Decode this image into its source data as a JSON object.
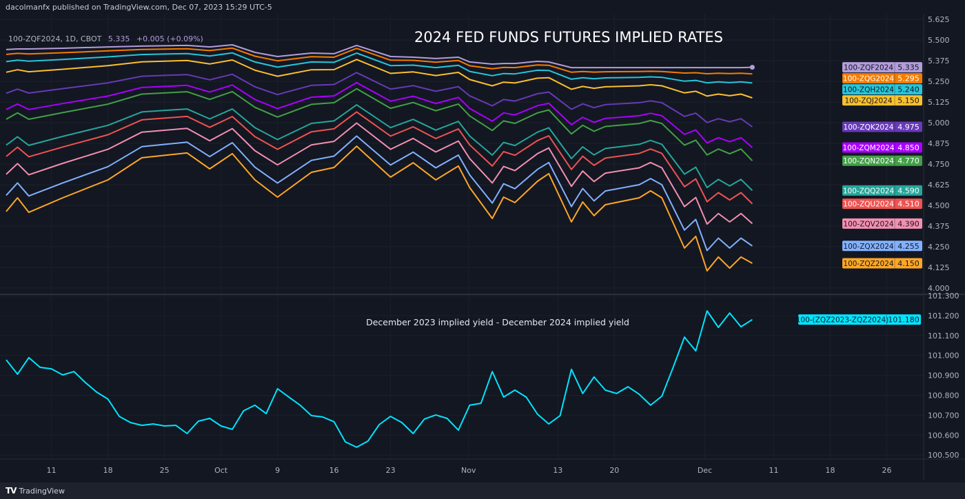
{
  "header": {
    "publisher": "dacolmanfx published on TradingView.com, Dec 07, 2023 15:29 UTC-5",
    "legend": {
      "symbol": "100-ZQF2024, 1D, CBOT",
      "price": "5.335",
      "change": "+0.005 (+0.09%)"
    }
  },
  "footer": {
    "brand": "TradingView",
    "logo_text": "TV"
  },
  "x_axis": {
    "unit": "trading-day index (0 = first bar)",
    "ticks": [
      {
        "label": "11",
        "day": 4
      },
      {
        "label": "18",
        "day": 9
      },
      {
        "label": "25",
        "day": 14
      },
      {
        "label": "Oct",
        "day": 19
      },
      {
        "label": "9",
        "day": 24
      },
      {
        "label": "16",
        "day": 29
      },
      {
        "label": "23",
        "day": 34
      },
      {
        "label": "Nov",
        "day": 40.9
      },
      {
        "label": "13",
        "day": 48.8
      },
      {
        "label": "20",
        "day": 53.8
      },
      {
        "label": "Dec",
        "day": 61.8
      },
      {
        "label": "11",
        "day": 67.9
      },
      {
        "label": "18",
        "day": 72.9
      },
      {
        "label": "26",
        "day": 77.9
      }
    ]
  },
  "chart_data": [
    {
      "type": "line",
      "title": "2024 FED FUNDS FUTURES IMPLIED RATES",
      "ylabel": "",
      "ylim": [
        3.95,
        5.7
      ],
      "yticks": [
        "5.625",
        "5.500",
        "5.375",
        "5.250",
        "5.125",
        "5.000",
        "4.875",
        "4.750",
        "4.625",
        "4.500",
        "4.375",
        "4.250",
        "4.125",
        "4.000"
      ],
      "x": [
        0,
        1,
        2,
        5,
        9,
        12,
        16,
        18,
        20,
        22,
        24,
        27,
        29,
        31,
        34,
        36,
        38,
        40,
        41,
        43,
        44,
        45,
        47,
        48,
        50,
        51,
        52,
        53,
        56,
        57,
        58,
        60,
        61,
        62,
        63,
        64,
        65,
        66
      ],
      "series": [
        {
          "name": "100-ZQF2024",
          "value_label": "5.335",
          "color": "#b39ddb",
          "text_color": "#131722",
          "values": [
            5.442,
            5.446,
            5.446,
            5.45,
            5.458,
            5.463,
            5.467,
            5.458,
            5.471,
            5.425,
            5.4,
            5.421,
            5.417,
            5.467,
            5.4,
            5.396,
            5.388,
            5.396,
            5.367,
            5.354,
            5.358,
            5.358,
            5.371,
            5.367,
            5.333,
            5.333,
            5.333,
            5.333,
            5.333,
            5.333,
            5.333,
            5.333,
            5.333,
            5.333,
            5.333,
            5.333,
            5.333,
            5.335
          ]
        },
        {
          "name": "100-ZQG2024",
          "value_label": "5.295",
          "color": "#f57c00",
          "text_color": "#ffffff",
          "values": [
            5.413,
            5.419,
            5.416,
            5.423,
            5.434,
            5.443,
            5.447,
            5.436,
            5.451,
            5.402,
            5.374,
            5.399,
            5.396,
            5.449,
            5.378,
            5.377,
            5.366,
            5.376,
            5.344,
            5.326,
            5.334,
            5.333,
            5.349,
            5.347,
            5.305,
            5.309,
            5.306,
            5.308,
            5.309,
            5.311,
            5.309,
            5.3,
            5.302,
            5.296,
            5.299,
            5.297,
            5.299,
            5.295
          ]
        },
        {
          "name": "100-ZQH2024",
          "value_label": "5.240",
          "color": "#26c6da",
          "text_color": "#131722",
          "values": [
            5.369,
            5.378,
            5.372,
            5.382,
            5.398,
            5.412,
            5.418,
            5.403,
            5.422,
            5.367,
            5.336,
            5.367,
            5.365,
            5.421,
            5.345,
            5.348,
            5.333,
            5.347,
            5.31,
            5.284,
            5.297,
            5.295,
            5.317,
            5.316,
            5.263,
            5.272,
            5.266,
            5.271,
            5.274,
            5.277,
            5.274,
            5.251,
            5.256,
            5.241,
            5.247,
            5.242,
            5.247,
            5.24
          ]
        },
        {
          "name": "100-ZQJ2024",
          "value_label": "5.150",
          "color": "#fbc02d",
          "text_color": "#131722",
          "values": [
            5.305,
            5.32,
            5.308,
            5.323,
            5.345,
            5.368,
            5.376,
            5.355,
            5.379,
            5.317,
            5.281,
            5.32,
            5.321,
            5.382,
            5.298,
            5.307,
            5.285,
            5.304,
            5.261,
            5.223,
            5.245,
            5.24,
            5.269,
            5.272,
            5.202,
            5.219,
            5.208,
            5.217,
            5.223,
            5.229,
            5.223,
            5.18,
            5.19,
            5.161,
            5.173,
            5.163,
            5.173,
            5.15
          ]
        },
        {
          "name": "100-ZQK2024",
          "value_label": "4.975",
          "color": "#673ab7",
          "text_color": "#ffffff",
          "values": [
            5.178,
            5.203,
            5.179,
            5.206,
            5.241,
            5.281,
            5.291,
            5.259,
            5.293,
            5.217,
            5.17,
            5.226,
            5.231,
            5.303,
            5.203,
            5.224,
            5.19,
            5.218,
            5.162,
            5.102,
            5.14,
            5.131,
            5.175,
            5.185,
            5.081,
            5.114,
            5.091,
            5.109,
            5.121,
            5.132,
            5.121,
            5.038,
            5.058,
            5.001,
            5.024,
            5.006,
            5.024,
            4.975
          ]
        },
        {
          "name": "100-ZQM2024",
          "value_label": "4.850",
          "color": "#aa00ff",
          "text_color": "#ffffff",
          "values": [
            5.08,
            5.113,
            5.08,
            5.116,
            5.161,
            5.213,
            5.226,
            5.185,
            5.228,
            5.14,
            5.085,
            5.154,
            5.162,
            5.242,
            5.13,
            5.16,
            5.116,
            5.153,
            5.086,
            5.009,
            5.059,
            5.047,
            5.103,
            5.117,
            4.988,
            5.033,
            5.002,
            5.026,
            5.042,
            5.057,
            5.042,
            4.929,
            4.956,
            4.878,
            4.909,
            4.885,
            4.909,
            4.85
          ]
        },
        {
          "name": "100-ZQN2024",
          "value_label": "4.770",
          "color": "#43a047",
          "text_color": "#ffffff",
          "values": [
            5.021,
            5.059,
            5.021,
            5.061,
            5.112,
            5.173,
            5.187,
            5.141,
            5.188,
            5.093,
            5.034,
            5.111,
            5.121,
            5.205,
            5.087,
            5.122,
            5.072,
            5.113,
            5.041,
            4.953,
            5.011,
            4.996,
            5.059,
            5.077,
            4.932,
            4.984,
            4.948,
            4.977,
            4.995,
            5.013,
            4.995,
            4.864,
            4.894,
            4.805,
            4.841,
            4.812,
            4.841,
            4.77
          ]
        },
        {
          "name": "100-ZQQ2024",
          "value_label": "4.590",
          "color": "#26a69a",
          "text_color": "#ffffff",
          "values": [
            4.864,
            4.915,
            4.863,
            4.917,
            4.984,
            5.065,
            5.083,
            5.023,
            5.083,
            4.97,
            4.898,
            4.996,
            5.011,
            5.108,
            4.97,
            5.02,
            4.955,
            5.008,
            4.919,
            4.804,
            4.881,
            4.862,
            4.943,
            4.969,
            4.783,
            4.854,
            4.805,
            4.844,
            4.869,
            4.893,
            4.869,
            4.689,
            4.731,
            4.608,
            4.657,
            4.618,
            4.657,
            4.59
          ]
        },
        {
          "name": "100-ZQU2024",
          "value_label": "4.510",
          "color": "#ef5350",
          "text_color": "#ffffff",
          "values": [
            4.796,
            4.852,
            4.794,
            4.853,
            4.927,
            5.017,
            5.038,
            4.972,
            5.037,
            4.916,
            4.839,
            4.945,
            4.963,
            5.065,
            4.919,
            4.975,
            4.904,
            4.962,
            4.866,
            4.738,
            4.825,
            4.803,
            4.892,
            4.921,
            4.717,
            4.797,
            4.742,
            4.786,
            4.814,
            4.841,
            4.814,
            4.613,
            4.66,
            4.522,
            4.577,
            4.533,
            4.577,
            4.51
          ]
        },
        {
          "name": "100-ZQV2024",
          "value_label": "4.390",
          "color": "#f48fb1",
          "text_color": "#131722",
          "values": [
            4.688,
            4.753,
            4.685,
            4.754,
            4.839,
            4.943,
            4.966,
            4.891,
            4.964,
            4.831,
            4.745,
            4.866,
            4.887,
            4.998,
            4.839,
            4.905,
            4.823,
            4.889,
            4.783,
            4.636,
            4.736,
            4.71,
            4.813,
            4.847,
            4.615,
            4.708,
            4.644,
            4.695,
            4.727,
            4.759,
            4.727,
            4.493,
            4.548,
            4.387,
            4.451,
            4.4,
            4.451,
            4.39
          ]
        },
        {
          "name": "100-ZQX2024",
          "value_label": "4.255",
          "color": "#82b1ff",
          "text_color": "#131722",
          "values": [
            4.561,
            4.636,
            4.557,
            4.636,
            4.734,
            4.855,
            4.882,
            4.795,
            4.879,
            4.731,
            4.635,
            4.772,
            4.798,
            4.919,
            4.744,
            4.822,
            4.727,
            4.804,
            4.684,
            4.514,
            4.631,
            4.601,
            4.718,
            4.759,
            4.493,
            4.602,
            4.527,
            4.587,
            4.625,
            4.662,
            4.625,
            4.351,
            4.415,
            4.227,
            4.302,
            4.242,
            4.302,
            4.255
          ]
        },
        {
          "name": "100-ZQZ2024",
          "value_label": "4.150",
          "color": "#ffa726",
          "text_color": "#131722",
          "values": [
            4.463,
            4.546,
            4.458,
            4.546,
            4.654,
            4.788,
            4.817,
            4.721,
            4.813,
            4.654,
            4.55,
            4.7,
            4.729,
            4.858,
            4.671,
            4.758,
            4.654,
            4.738,
            4.608,
            4.421,
            4.55,
            4.517,
            4.646,
            4.692,
            4.4,
            4.521,
            4.438,
            4.504,
            4.546,
            4.588,
            4.546,
            4.242,
            4.313,
            4.104,
            4.188,
            4.121,
            4.188,
            4.15
          ]
        }
      ]
    },
    {
      "type": "line",
      "title": "December 2023 implied yield - December 2024 implied yield",
      "ylim": [
        100.48,
        101.32
      ],
      "yticks": [
        "101.300",
        "101.200",
        "101.100",
        "101.000",
        "100.900",
        "100.800",
        "100.700",
        "100.600",
        "100.500"
      ],
      "x": [
        0,
        1,
        2,
        3,
        4,
        5,
        6,
        7,
        8,
        9,
        10,
        11,
        12,
        13,
        14,
        15,
        16,
        17,
        18,
        19,
        20,
        21,
        22,
        23,
        24,
        25,
        26,
        27,
        28,
        29,
        30,
        31,
        32,
        33,
        34,
        35,
        36,
        37,
        38,
        39,
        40,
        41,
        42,
        43,
        44,
        45,
        46,
        47,
        48,
        49,
        50,
        51,
        52,
        53,
        54,
        55,
        56,
        57,
        58,
        59,
        60,
        61,
        62,
        63,
        64,
        65,
        66
      ],
      "series": [
        {
          "name": "100-(ZQZ2023-ZQZ2024)",
          "value_label": "101.180",
          "color": "#00e5ff",
          "text_color": "#131722",
          "values": [
            100.978,
            100.906,
            100.989,
            100.94,
            100.933,
            100.902,
            100.919,
            100.864,
            100.816,
            100.781,
            100.694,
            100.663,
            100.649,
            100.656,
            100.646,
            100.649,
            100.608,
            100.67,
            100.684,
            100.646,
            100.629,
            100.722,
            100.75,
            100.708,
            100.833,
            100.791,
            100.75,
            100.698,
            100.691,
            100.667,
            100.566,
            100.539,
            100.57,
            100.653,
            100.694,
            100.663,
            100.608,
            100.681,
            100.701,
            100.684,
            100.625,
            100.75,
            100.76,
            100.919,
            100.791,
            100.826,
            100.791,
            100.705,
            100.656,
            100.698,
            100.93,
            100.809,
            100.892,
            100.826,
            100.809,
            100.843,
            100.805,
            100.75,
            100.795,
            100.94,
            101.092,
            101.023,
            101.224,
            101.141,
            101.213,
            101.144,
            101.18
          ]
        }
      ]
    }
  ]
}
